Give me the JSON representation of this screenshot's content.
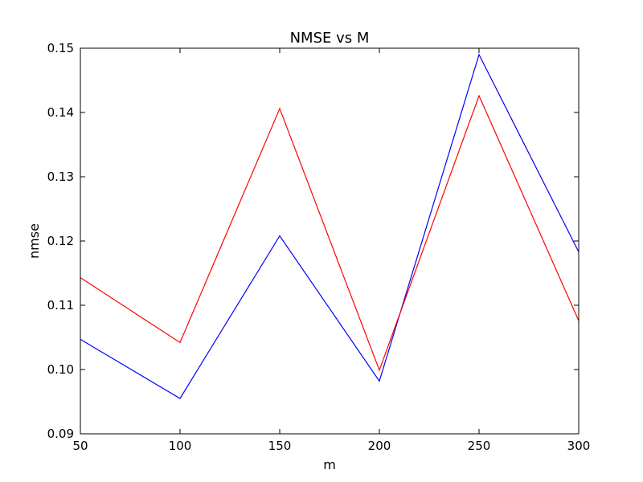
{
  "chart_data": {
    "type": "line",
    "title": "NMSE vs M",
    "xlabel": "m",
    "ylabel": "nmse",
    "xlim": [
      50,
      300
    ],
    "ylim": [
      0.09,
      0.15
    ],
    "xticks": [
      "50",
      "100",
      "150",
      "200",
      "250",
      "300"
    ],
    "yticks": [
      "0.09",
      "0.10",
      "0.11",
      "0.12",
      "0.13",
      "0.14",
      "0.15"
    ],
    "grid": false,
    "legend": "none",
    "x": [
      50,
      100,
      150,
      200,
      250,
      300
    ],
    "series": [
      {
        "color": "#0000ff",
        "values": [
          0.1047,
          0.0955,
          0.1208,
          0.0982,
          0.149,
          0.1183
        ]
      },
      {
        "color": "#ff0000",
        "values": [
          0.1143,
          0.1042,
          0.1406,
          0.0999,
          0.1426,
          0.1076
        ]
      }
    ]
  }
}
